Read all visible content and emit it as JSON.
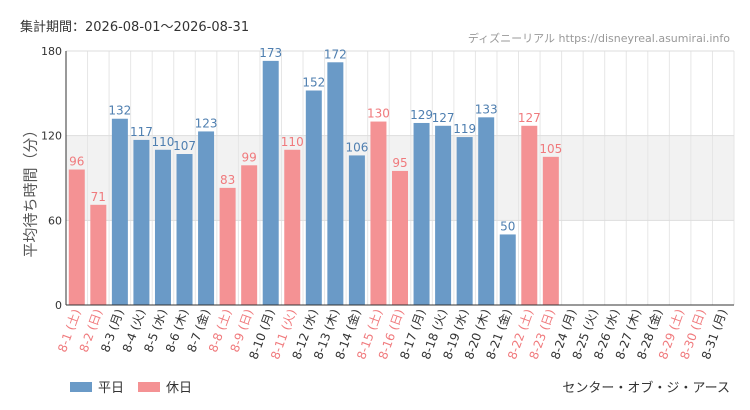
{
  "header": {
    "period": "集計期間：2026-08-01～2026-08-31",
    "source": "ディズニーリアル https://disneyreal.asumirai.info"
  },
  "chart_data": {
    "type": "bar",
    "ylabel": "平均待ち時間（分）",
    "ylim": [
      0,
      180
    ],
    "yticks": [
      0,
      60,
      120,
      180
    ],
    "shaded_band": [
      60,
      120
    ],
    "categories": [
      "8-1 (土)",
      "8-2 (日)",
      "8-3 (月)",
      "8-4 (火)",
      "8-5 (水)",
      "8-6 (木)",
      "8-7 (金)",
      "8-8 (土)",
      "8-9 (日)",
      "8-10 (月)",
      "8-11 (火)",
      "8-12 (水)",
      "8-13 (木)",
      "8-14 (金)",
      "8-15 (土)",
      "8-16 (日)",
      "8-17 (月)",
      "8-18 (火)",
      "8-19 (水)",
      "8-20 (木)",
      "8-21 (金)",
      "8-22 (土)",
      "8-23 (日)",
      "8-24 (月)",
      "8-25 (火)",
      "8-26 (水)",
      "8-27 (木)",
      "8-28 (金)",
      "8-29 (土)",
      "8-30 (日)",
      "8-31 (月)"
    ],
    "values": [
      96,
      71,
      132,
      117,
      110,
      107,
      123,
      83,
      99,
      173,
      110,
      152,
      172,
      106,
      130,
      95,
      129,
      127,
      119,
      133,
      50,
      127,
      105,
      null,
      null,
      null,
      null,
      null,
      null,
      null,
      null
    ],
    "day_types": [
      "holiday",
      "holiday",
      "weekday",
      "weekday",
      "weekday",
      "weekday",
      "weekday",
      "holiday",
      "holiday",
      "weekday",
      "holiday",
      "weekday",
      "weekday",
      "weekday",
      "holiday",
      "holiday",
      "weekday",
      "weekday",
      "weekday",
      "weekday",
      "weekday",
      "holiday",
      "holiday",
      "weekday",
      "weekday",
      "weekday",
      "weekday",
      "weekday",
      "holiday",
      "holiday",
      "weekday"
    ],
    "series": [
      {
        "name": "平日",
        "color": "#6a9ac7",
        "label_color": "#4f7fb0"
      },
      {
        "name": "休日",
        "color": "#f49294",
        "label_color": "#f07a7d"
      }
    ],
    "grid": true,
    "legend": "bottom-left"
  },
  "footer": {
    "attraction": "センター・オブ・ジ・アース"
  }
}
